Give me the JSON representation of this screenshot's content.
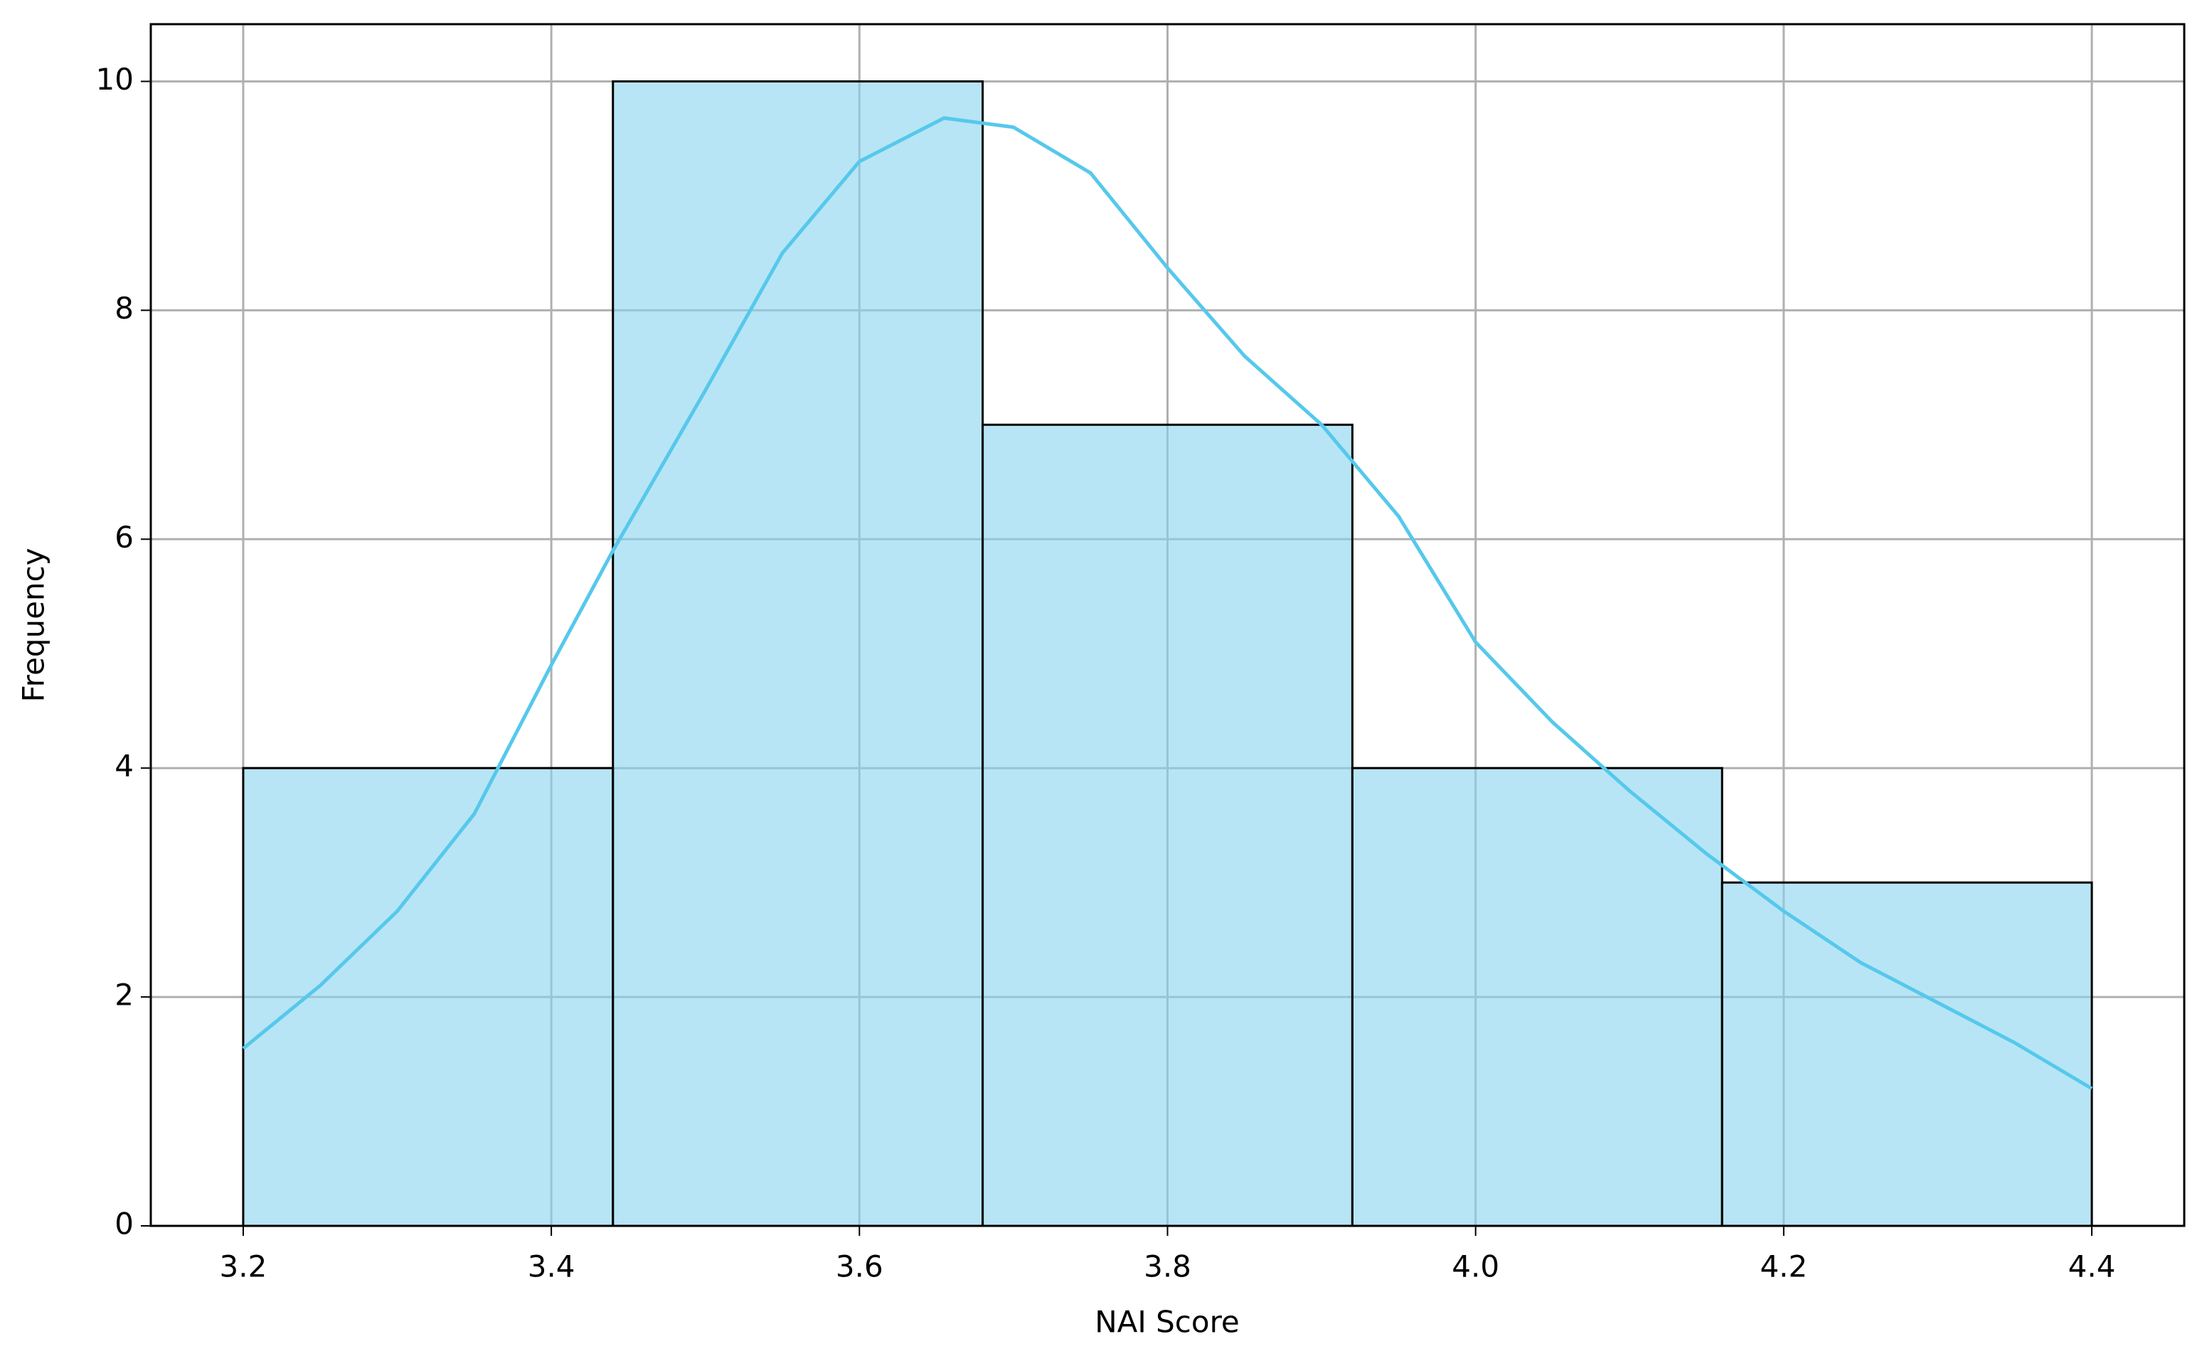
{
  "chart_data": {
    "type": "histogram",
    "xlabel": "NAI Score",
    "ylabel": "Frequency",
    "bins": [
      3.2,
      3.44,
      3.68,
      3.92,
      4.16,
      4.4
    ],
    "values": [
      4,
      10,
      7,
      4,
      3
    ],
    "color": "#87d3ee",
    "edgecolor": "#000000",
    "kde": {
      "color": "#56c8ec",
      "x": [
        3.2,
        3.25,
        3.3,
        3.35,
        3.4,
        3.44,
        3.5,
        3.55,
        3.6,
        3.655,
        3.7,
        3.75,
        3.8,
        3.85,
        3.9,
        3.95,
        4.0,
        4.05,
        4.1,
        4.15,
        4.2,
        4.25,
        4.3,
        4.35,
        4.4
      ],
      "values": [
        1.55,
        2.1,
        2.75,
        3.6,
        4.9,
        5.9,
        7.3,
        8.5,
        9.3,
        9.68,
        9.6,
        9.2,
        8.37,
        7.6,
        7.0,
        6.2,
        5.1,
        4.4,
        3.8,
        3.25,
        2.75,
        2.3,
        1.95,
        1.6,
        1.2
      ]
    },
    "xlim": [
      3.14,
      4.46
    ],
    "ylim": [
      0,
      10.5
    ],
    "xticks": [
      3.2,
      3.4,
      3.6,
      3.8,
      {
        "value": 4,
        "label": "4.0"
      },
      4.2,
      4.4
    ],
    "yticks": [
      0,
      2,
      4,
      6,
      8,
      10
    ],
    "grid": true
  }
}
